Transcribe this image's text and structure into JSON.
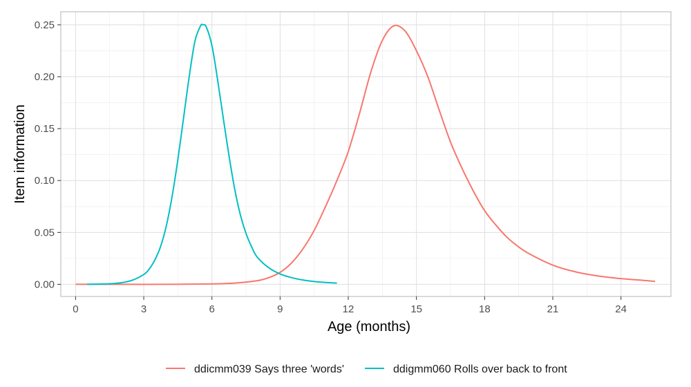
{
  "chart_data": {
    "type": "line",
    "xlabel": "Age (months)",
    "ylabel": "Item information",
    "xlim": [
      -0.65,
      26.2
    ],
    "ylim": [
      -0.0117,
      0.2626
    ],
    "x_ticks": [
      0,
      3,
      6,
      9,
      12,
      15,
      18,
      21,
      24
    ],
    "x_tick_labels": [
      "0",
      "3",
      "6",
      "9",
      "12",
      "15",
      "18",
      "21",
      "24"
    ],
    "y_ticks": [
      0.0,
      0.05,
      0.1,
      0.15,
      0.2,
      0.25
    ],
    "y_tick_labels": [
      "0.00",
      "0.05",
      "0.10",
      "0.15",
      "0.20",
      "0.25"
    ],
    "grid": true,
    "legend_position": "bottom",
    "series": [
      {
        "name": "ddicmm039 Says three 'words'",
        "color": "#F8766D",
        "x": [
          0.0,
          2.0,
          4.0,
          6.0,
          7.0,
          8.0,
          8.5,
          9.0,
          9.5,
          10.0,
          10.5,
          11.0,
          11.5,
          12.0,
          12.5,
          13.0,
          13.5,
          14.0,
          14.5,
          15.0,
          15.5,
          16.0,
          16.5,
          17.0,
          17.5,
          18.0,
          18.5,
          19.0,
          19.5,
          20.0,
          21.0,
          22.0,
          23.0,
          24.0,
          25.0,
          25.5
        ],
        "y": [
          0.0,
          0.0,
          0.0,
          0.0004,
          0.0012,
          0.0035,
          0.0064,
          0.0115,
          0.0205,
          0.034,
          0.052,
          0.075,
          0.1,
          0.128,
          0.165,
          0.205,
          0.235,
          0.249,
          0.244,
          0.225,
          0.2,
          0.168,
          0.137,
          0.112,
          0.09,
          0.071,
          0.057,
          0.045,
          0.036,
          0.029,
          0.0185,
          0.012,
          0.008,
          0.0055,
          0.0038,
          0.0028
        ]
      },
      {
        "name": "ddigmm060 Rolls over back to front",
        "color": "#00BFC4",
        "x": [
          0.5,
          1.5,
          2.0,
          2.5,
          3.0,
          3.25,
          3.5,
          3.75,
          4.0,
          4.25,
          4.5,
          4.75,
          5.0,
          5.25,
          5.5,
          5.6,
          5.75,
          6.0,
          6.25,
          6.5,
          6.75,
          7.0,
          7.25,
          7.5,
          7.75,
          8.0,
          8.5,
          9.0,
          9.5,
          10.0,
          10.5,
          11.0,
          11.5
        ],
        "y": [
          0.0,
          0.0005,
          0.0015,
          0.004,
          0.0095,
          0.015,
          0.024,
          0.037,
          0.057,
          0.085,
          0.12,
          0.16,
          0.2,
          0.234,
          0.249,
          0.25,
          0.248,
          0.23,
          0.197,
          0.16,
          0.124,
          0.092,
          0.067,
          0.049,
          0.036,
          0.026,
          0.016,
          0.01,
          0.0065,
          0.0042,
          0.0027,
          0.0018,
          0.0012
        ]
      }
    ]
  }
}
